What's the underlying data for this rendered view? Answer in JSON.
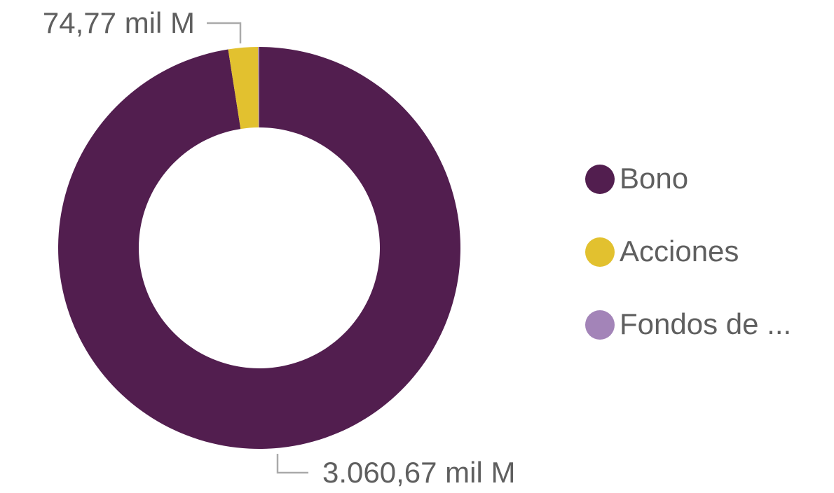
{
  "chart_data": {
    "type": "donut",
    "categories": [
      "Bono",
      "Acciones",
      "Fondos de ..."
    ],
    "values": [
      3060.67,
      74.77,
      3
    ],
    "value_labels": [
      "3.060,67 mil M",
      "74,77 mil M",
      null
    ],
    "colors": [
      "#521e4f",
      "#e2c12f",
      "#a384b8"
    ],
    "legend": "right"
  }
}
